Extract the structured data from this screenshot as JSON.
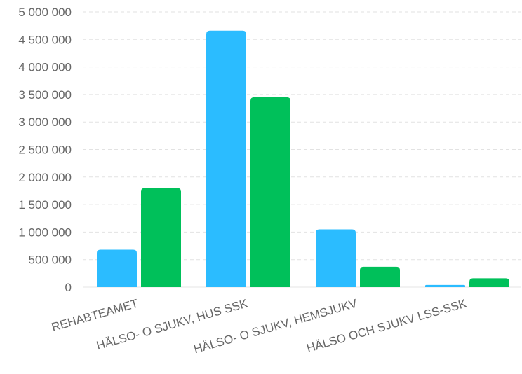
{
  "chart_data": {
    "type": "bar",
    "categories": [
      "REHABTEAMET",
      "HÄLSO- O SJUKV, HUS SSK",
      "HÄLSO- O SJUKV, HEMSJUKV",
      "HÄLSO OCH SJUKV LSS-SSK"
    ],
    "series": [
      {
        "values": [
          680000,
          4660000,
          1050000,
          40000
        ],
        "color": "#2bbcff"
      },
      {
        "values": [
          1800000,
          3450000,
          370000,
          160000
        ],
        "color": "#00c05a"
      }
    ],
    "yticks": [
      "0",
      "500 000",
      "1 000 000",
      "1 500 000",
      "2 000 000",
      "2 500 000",
      "3 000 000",
      "3 500 000",
      "4 000 000",
      "4 500 000",
      "5 000 000"
    ],
    "ylim": [
      0,
      5000000
    ],
    "grid": true,
    "title": "",
    "xlabel": "",
    "ylabel": ""
  }
}
